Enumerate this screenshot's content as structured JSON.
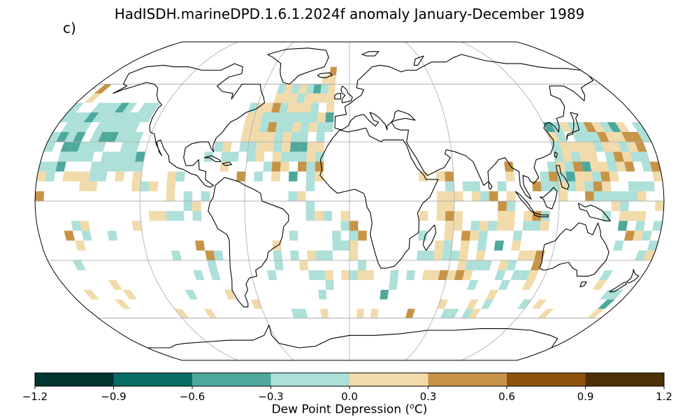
{
  "map": {
    "title": "HadISDH.marineDPD.1.6.1.2024f anomaly January-December 1989",
    "panel_label": "c)",
    "projection": "Robinson",
    "colorbar": {
      "label_prefix": "Dew Point Depression (",
      "label_sup": "o",
      "label_suffix": "C)",
      "ticks": [
        "−1.2",
        "−0.9",
        "−0.6",
        "−0.3",
        "0.0",
        "0.3",
        "0.6",
        "0.9",
        "1.2"
      ],
      "bins": [
        {
          "from": -1.2,
          "to": -0.9,
          "color": "#01352f"
        },
        {
          "from": -0.9,
          "to": -0.6,
          "color": "#086d63"
        },
        {
          "from": -0.6,
          "to": -0.3,
          "color": "#4ea99c"
        },
        {
          "from": -0.3,
          "to": 0.0,
          "color": "#ade0d8"
        },
        {
          "from": 0.0,
          "to": 0.3,
          "color": "#f1dbab"
        },
        {
          "from": 0.3,
          "to": 0.6,
          "color": "#c79447"
        },
        {
          "from": 0.6,
          "to": 0.9,
          "color": "#8f520f"
        },
        {
          "from": 0.9,
          "to": 1.2,
          "color": "#4d2f06"
        }
      ]
    },
    "grid_lat": [
      60,
      30,
      0,
      -30,
      -60
    ],
    "grid_lon": [
      -120,
      -60,
      0,
      60,
      120
    ]
  }
}
